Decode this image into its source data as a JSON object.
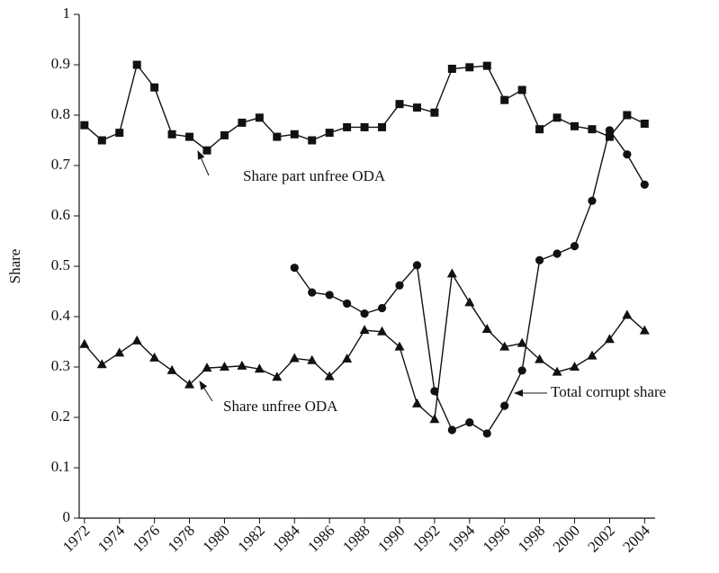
{
  "chart_data": {
    "type": "line",
    "ylabel": "Share",
    "x": [
      1972,
      1973,
      1974,
      1975,
      1976,
      1977,
      1978,
      1979,
      1980,
      1981,
      1982,
      1983,
      1984,
      1985,
      1986,
      1987,
      1988,
      1989,
      1990,
      1991,
      1992,
      1993,
      1994,
      1995,
      1996,
      1997,
      1998,
      1999,
      2000,
      2001,
      2002,
      2003,
      2004
    ],
    "series": [
      {
        "name": "Share part unfree ODA",
        "color": "#111111",
        "marker": "square",
        "values": [
          0.78,
          0.75,
          0.765,
          0.9,
          0.855,
          0.762,
          0.757,
          0.73,
          0.76,
          0.785,
          0.795,
          0.757,
          0.762,
          0.75,
          0.765,
          0.776,
          0.776,
          0.776,
          0.822,
          0.815,
          0.805,
          0.892,
          0.895,
          0.898,
          0.83,
          0.85,
          0.772,
          0.795,
          0.778,
          0.772,
          0.757,
          0.8,
          0.783
        ]
      },
      {
        "name": "Total corrupt share",
        "color": "#111111",
        "marker": "circle",
        "values": [
          null,
          null,
          null,
          null,
          null,
          null,
          null,
          null,
          null,
          null,
          null,
          null,
          0.497,
          0.448,
          0.443,
          0.426,
          0.406,
          0.417,
          0.462,
          0.502,
          0.252,
          0.175,
          0.19,
          0.168,
          0.223,
          0.293,
          0.512,
          0.525,
          0.54,
          0.63,
          0.77,
          0.722,
          0.662
        ]
      },
      {
        "name": "Share unfree ODA",
        "color": "#111111",
        "marker": "triangle",
        "values": [
          0.345,
          0.305,
          0.328,
          0.352,
          0.318,
          0.293,
          0.265,
          0.298,
          0.3,
          0.302,
          0.296,
          0.28,
          0.317,
          0.313,
          0.281,
          0.316,
          0.373,
          0.37,
          0.34,
          0.227,
          0.196,
          0.485,
          0.428,
          0.375,
          0.34,
          0.347,
          0.315,
          0.29,
          0.3,
          0.322,
          0.355,
          0.403,
          0.372
        ]
      }
    ],
    "xlim": [
      1971.7,
      2004.6
    ],
    "xticks": [
      1972,
      1974,
      1976,
      1978,
      1980,
      1982,
      1984,
      1986,
      1988,
      1990,
      1992,
      1994,
      1996,
      1998,
      2000,
      2002,
      2004
    ],
    "ylim": [
      0,
      1
    ],
    "yticks": [
      0,
      0.1,
      0.2,
      0.3,
      0.4,
      0.5,
      0.6,
      0.7,
      0.8,
      0.9,
      1
    ],
    "grid": false
  }
}
